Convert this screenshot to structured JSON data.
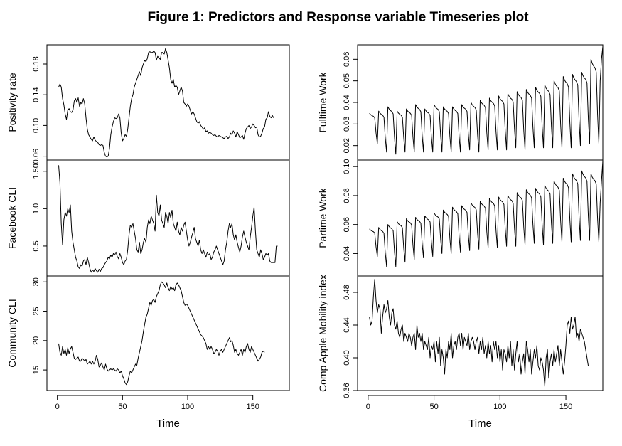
{
  "figure": {
    "title": "Figure 1: Predictors and Response variable Timeseries plot"
  },
  "chart_data": [
    {
      "type": "line",
      "title": "",
      "xlabel": "Time",
      "ylabel": "Positivity rate",
      "ylim": [
        0.055,
        0.205
      ],
      "yticks": [
        0.06,
        0.1,
        0.14,
        0.18
      ],
      "ytick_labels": [
        "0.06",
        "0.10",
        "0.14",
        "0.18"
      ],
      "xlim": [
        -8,
        178
      ],
      "x_start": 1,
      "values": [
        0.15,
        0.154,
        0.15,
        0.135,
        0.127,
        0.115,
        0.108,
        0.12,
        0.122,
        0.118,
        0.117,
        0.12,
        0.132,
        0.135,
        0.13,
        0.136,
        0.125,
        0.13,
        0.128,
        0.135,
        0.128,
        0.11,
        0.095,
        0.088,
        0.085,
        0.082,
        0.08,
        0.085,
        0.081,
        0.079,
        0.078,
        0.075,
        0.074,
        0.075,
        0.074,
        0.065,
        0.06,
        0.059,
        0.06,
        0.07,
        0.088,
        0.098,
        0.105,
        0.11,
        0.109,
        0.11,
        0.115,
        0.11,
        0.09,
        0.08,
        0.083,
        0.088,
        0.086,
        0.095,
        0.11,
        0.125,
        0.135,
        0.14,
        0.15,
        0.155,
        0.16,
        0.165,
        0.17,
        0.165,
        0.175,
        0.18,
        0.185,
        0.183,
        0.187,
        0.195,
        0.196,
        0.195,
        0.195,
        0.197,
        0.195,
        0.185,
        0.19,
        0.188,
        0.186,
        0.195,
        0.195,
        0.193,
        0.2,
        0.195,
        0.185,
        0.175,
        0.16,
        0.155,
        0.16,
        0.15,
        0.152,
        0.15,
        0.14,
        0.145,
        0.15,
        0.145,
        0.13,
        0.128,
        0.125,
        0.128,
        0.125,
        0.12,
        0.115,
        0.118,
        0.115,
        0.11,
        0.105,
        0.103,
        0.105,
        0.1,
        0.098,
        0.095,
        0.097,
        0.092,
        0.093,
        0.09,
        0.091,
        0.09,
        0.088,
        0.087,
        0.088,
        0.086,
        0.085,
        0.087,
        0.086,
        0.085,
        0.084,
        0.083,
        0.085,
        0.086,
        0.083,
        0.085,
        0.09,
        0.088,
        0.093,
        0.09,
        0.085,
        0.092,
        0.088,
        0.084,
        0.085,
        0.087,
        0.082,
        0.09,
        0.096,
        0.098,
        0.1,
        0.096,
        0.098,
        0.102,
        0.1,
        0.097,
        0.098,
        0.088,
        0.085,
        0.086,
        0.09,
        0.096,
        0.098,
        0.108,
        0.11,
        0.118,
        0.112,
        0.11,
        0.113,
        0.11
      ]
    },
    {
      "type": "line",
      "title": "",
      "xlabel": "Time",
      "ylabel": "Facebook CLI",
      "ylim": [
        0.1,
        1.65
      ],
      "yticks": [
        0.5,
        1.0,
        1.5
      ],
      "ytick_labels": [
        "0.5",
        "1.0",
        "1.50"
      ],
      "xlim": [
        -8,
        178
      ],
      "x_start": 1,
      "values": [
        1.58,
        1.35,
        0.8,
        0.52,
        0.85,
        0.95,
        0.9,
        1.0,
        0.95,
        1.05,
        0.7,
        0.55,
        0.45,
        0.35,
        0.3,
        0.22,
        0.2,
        0.25,
        0.23,
        0.3,
        0.32,
        0.25,
        0.35,
        0.28,
        0.2,
        0.15,
        0.18,
        0.16,
        0.2,
        0.17,
        0.15,
        0.19,
        0.16,
        0.2,
        0.21,
        0.25,
        0.28,
        0.3,
        0.35,
        0.33,
        0.38,
        0.35,
        0.4,
        0.38,
        0.42,
        0.36,
        0.33,
        0.4,
        0.35,
        0.28,
        0.25,
        0.3,
        0.32,
        0.45,
        0.65,
        0.78,
        0.75,
        0.8,
        0.7,
        0.6,
        0.45,
        0.42,
        0.55,
        0.4,
        0.45,
        0.55,
        0.6,
        0.55,
        0.75,
        0.85,
        0.8,
        0.9,
        0.85,
        0.8,
        0.7,
        1.18,
        0.95,
        0.9,
        1.05,
        0.85,
        0.8,
        0.75,
        0.95,
        0.9,
        0.8,
        0.95,
        0.88,
        0.98,
        0.8,
        0.75,
        0.7,
        0.82,
        0.7,
        0.65,
        0.75,
        0.7,
        0.78,
        0.82,
        0.7,
        0.58,
        0.5,
        0.55,
        0.62,
        0.68,
        0.75,
        0.6,
        0.55,
        0.5,
        0.58,
        0.45,
        0.4,
        0.45,
        0.4,
        0.35,
        0.42,
        0.38,
        0.4,
        0.32,
        0.35,
        0.42,
        0.45,
        0.5,
        0.45,
        0.4,
        0.35,
        0.3,
        0.25,
        0.3,
        0.45,
        0.55,
        0.7,
        0.8,
        0.75,
        0.8,
        0.65,
        0.58,
        0.65,
        0.55,
        0.48,
        0.42,
        0.5,
        0.62,
        0.7,
        0.62,
        0.55,
        0.5,
        0.45,
        0.62,
        0.75,
        0.9,
        1.02,
        0.7,
        0.45,
        0.4,
        0.35,
        0.45,
        0.4,
        0.32,
        0.35,
        0.4,
        0.38,
        0.4,
        0.3,
        0.28,
        0.28,
        0.28,
        0.28,
        0.5,
        0.5
      ]
    },
    {
      "type": "line",
      "title": "",
      "xlabel": "Time",
      "ylabel": "Community CLI",
      "ylim": [
        11.5,
        31.0
      ],
      "yticks": [
        15,
        20,
        25,
        30
      ],
      "ytick_labels": [
        "15",
        "20",
        "25",
        "30"
      ],
      "xlim": [
        -8,
        178
      ],
      "x_start": 1,
      "values": [
        19.5,
        18.0,
        17.5,
        19.0,
        17.8,
        18.5,
        17.5,
        18.8,
        17.8,
        18.6,
        19.0,
        18.0,
        17.0,
        16.8,
        17.0,
        17.2,
        16.5,
        16.5,
        17.0,
        16.8,
        16.5,
        16.8,
        16.0,
        16.2,
        16.5,
        16.0,
        16.5,
        16.0,
        16.5,
        17.5,
        16.8,
        15.5,
        15.8,
        16.2,
        15.5,
        15.0,
        16.0,
        15.2,
        14.8,
        15.0,
        15.2,
        15.0,
        15.2,
        15.0,
        14.8,
        15.2,
        15.0,
        14.5,
        14.8,
        14.0,
        13.5,
        12.8,
        12.5,
        13.0,
        14.0,
        14.8,
        14.5,
        15.0,
        15.5,
        16.0,
        15.8,
        17.0,
        18.0,
        19.0,
        20.0,
        21.5,
        22.8,
        24.0,
        24.5,
        25.5,
        26.5,
        26.0,
        26.8,
        27.0,
        26.5,
        27.5,
        28.0,
        28.5,
        29.5,
        30.0,
        29.8,
        29.5,
        29.0,
        29.8,
        29.0,
        28.5,
        29.2,
        28.8,
        29.0,
        28.5,
        29.5,
        29.8,
        29.5,
        29.0,
        28.5,
        27.5,
        26.5,
        26.0,
        26.2,
        26.0,
        25.5,
        25.0,
        24.5,
        24.0,
        23.5,
        23.0,
        22.5,
        22.0,
        21.5,
        21.0,
        20.8,
        20.5,
        20.0,
        19.5,
        18.5,
        19.0,
        18.5,
        19.0,
        18.5,
        17.8,
        18.0,
        18.5,
        18.2,
        17.5,
        18.2,
        18.5,
        18.0,
        18.5,
        19.0,
        19.5,
        20.0,
        20.5,
        19.8,
        20.0,
        19.2,
        18.0,
        18.5,
        17.8,
        17.5,
        18.0,
        18.5,
        17.5,
        18.5,
        18.0,
        19.0,
        19.5,
        18.5,
        18.0,
        19.0,
        18.5,
        18.0,
        17.5,
        17.0,
        16.5,
        16.8,
        17.2,
        18.0,
        18.2,
        18.0
      ]
    },
    {
      "type": "line",
      "title": "",
      "xlabel": "Time",
      "ylabel": "Fulltime Work",
      "ylim": [
        0.0133,
        0.0667
      ],
      "yticks": [
        0.02,
        0.03,
        0.04,
        0.05,
        0.06
      ],
      "ytick_labels": [
        "0.02",
        "0.03",
        "0.04",
        "0.05",
        "0.06"
      ],
      "xlim": [
        -8,
        178
      ],
      "x_start": 1,
      "period": 7,
      "weekly_pattern_fraction": [
        1.0,
        0.95,
        0.92,
        0.9,
        0.85,
        0.35,
        0.0
      ],
      "weekly_high": [
        0.035,
        0.036,
        0.038,
        0.036,
        0.037,
        0.039,
        0.037,
        0.039,
        0.038,
        0.038,
        0.039,
        0.04,
        0.041,
        0.042,
        0.043,
        0.044,
        0.045,
        0.046,
        0.047,
        0.048,
        0.05,
        0.052,
        0.053,
        0.054,
        0.06
      ],
      "weekly_low": [
        0.021,
        0.017,
        0.016,
        0.017,
        0.017,
        0.017,
        0.017,
        0.017,
        0.017,
        0.017,
        0.018,
        0.017,
        0.018,
        0.018,
        0.018,
        0.019,
        0.018,
        0.019,
        0.019,
        0.019,
        0.019,
        0.019,
        0.02,
        0.021,
        0.021
      ],
      "final_values": [
        0.05,
        0.06,
        0.066
      ]
    },
    {
      "type": "line",
      "title": "",
      "xlabel": "Time",
      "ylabel": "Partime Work",
      "ylim": [
        0.0245,
        0.1045
      ],
      "yticks": [
        0.04,
        0.06,
        0.08,
        0.1
      ],
      "ytick_labels": [
        "0.04",
        "0.06",
        "0.08",
        "0.10"
      ],
      "xlim": [
        -8,
        178
      ],
      "x_start": 1,
      "period": 7,
      "weekly_pattern_fraction": [
        1.0,
        0.95,
        0.92,
        0.9,
        0.85,
        0.35,
        0.0
      ],
      "weekly_high": [
        0.057,
        0.058,
        0.06,
        0.062,
        0.064,
        0.065,
        0.066,
        0.068,
        0.07,
        0.072,
        0.073,
        0.075,
        0.076,
        0.078,
        0.079,
        0.08,
        0.082,
        0.084,
        0.085,
        0.087,
        0.09,
        0.092,
        0.095,
        0.097,
        0.095
      ],
      "weekly_low": [
        0.038,
        0.031,
        0.031,
        0.034,
        0.036,
        0.037,
        0.038,
        0.04,
        0.04,
        0.041,
        0.042,
        0.043,
        0.044,
        0.044,
        0.045,
        0.045,
        0.046,
        0.047,
        0.046,
        0.047,
        0.048,
        0.048,
        0.049,
        0.049,
        0.048
      ],
      "final_values": [
        0.075,
        0.09,
        0.104
      ]
    },
    {
      "type": "line",
      "title": "",
      "xlabel": "Time",
      "ylabel": "Comp Apple Mobility index",
      "ylim": [
        0.36,
        0.5
      ],
      "yticks": [
        0.36,
        0.4,
        0.44,
        0.48
      ],
      "ytick_labels": [
        "0.36",
        "0.40",
        "0.44",
        "0.48"
      ],
      "xlim": [
        -8,
        178
      ],
      "x_start": 1,
      "values": [
        0.45,
        0.44,
        0.445,
        0.475,
        0.496,
        0.47,
        0.455,
        0.465,
        0.46,
        0.43,
        0.45,
        0.465,
        0.455,
        0.46,
        0.47,
        0.45,
        0.44,
        0.455,
        0.46,
        0.44,
        0.435,
        0.445,
        0.43,
        0.425,
        0.435,
        0.44,
        0.42,
        0.43,
        0.425,
        0.42,
        0.43,
        0.425,
        0.415,
        0.425,
        0.43,
        0.41,
        0.44,
        0.425,
        0.43,
        0.42,
        0.43,
        0.41,
        0.42,
        0.415,
        0.41,
        0.425,
        0.4,
        0.415,
        0.41,
        0.42,
        0.395,
        0.42,
        0.405,
        0.425,
        0.39,
        0.41,
        0.4,
        0.38,
        0.41,
        0.4,
        0.42,
        0.41,
        0.43,
        0.4,
        0.415,
        0.42,
        0.41,
        0.425,
        0.43,
        0.415,
        0.43,
        0.41,
        0.425,
        0.42,
        0.415,
        0.43,
        0.41,
        0.42,
        0.425,
        0.42,
        0.41,
        0.42,
        0.425,
        0.405,
        0.42,
        0.41,
        0.425,
        0.405,
        0.415,
        0.4,
        0.42,
        0.405,
        0.415,
        0.395,
        0.42,
        0.41,
        0.42,
        0.4,
        0.415,
        0.395,
        0.41,
        0.385,
        0.41,
        0.405,
        0.395,
        0.415,
        0.4,
        0.42,
        0.39,
        0.41,
        0.385,
        0.405,
        0.42,
        0.395,
        0.405,
        0.38,
        0.395,
        0.405,
        0.38,
        0.42,
        0.41,
        0.395,
        0.41,
        0.38,
        0.395,
        0.41,
        0.4,
        0.415,
        0.39,
        0.385,
        0.4,
        0.395,
        0.385,
        0.365,
        0.4,
        0.41,
        0.375,
        0.395,
        0.405,
        0.39,
        0.41,
        0.395,
        0.405,
        0.415,
        0.39,
        0.41,
        0.395,
        0.38,
        0.395,
        0.415,
        0.44,
        0.445,
        0.43,
        0.45,
        0.435,
        0.44,
        0.45,
        0.425,
        0.43,
        0.42,
        0.435,
        0.43,
        0.425,
        0.42,
        0.41,
        0.4,
        0.39
      ]
    }
  ],
  "x_axis": {
    "ticks": [
      0,
      50,
      100,
      150
    ],
    "tick_labels": [
      "0",
      "50",
      "100",
      "150"
    ],
    "label": "Time"
  }
}
